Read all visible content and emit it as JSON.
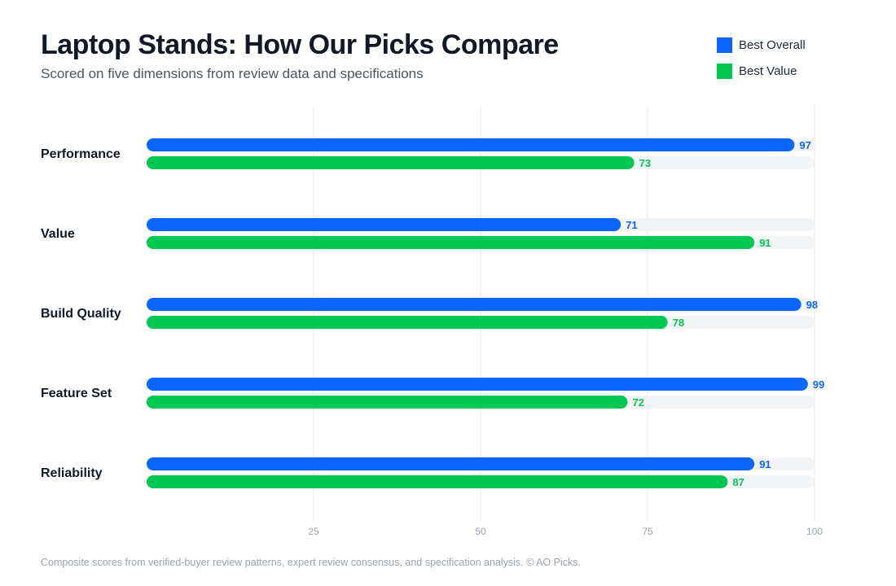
{
  "header": {
    "title": "Laptop Stands: How Our Picks Compare",
    "subtitle": "Scored on five dimensions from review data and specifications"
  },
  "legend": {
    "items": [
      {
        "label": "Best Overall",
        "color": "#0a66ff"
      },
      {
        "label": "Best Value",
        "color": "#00c853"
      }
    ]
  },
  "footer": {
    "note": "Composite scores from verified-buyer review patterns, expert review consensus, and specification analysis. © AO Picks."
  },
  "chart_data": {
    "type": "bar",
    "orientation": "horizontal",
    "title": "Laptop Stands: How Our Picks Compare",
    "subtitle": "Scored on five dimensions from review data and specifications",
    "categories": [
      "Performance",
      "Value",
      "Build Quality",
      "Feature Set",
      "Reliability"
    ],
    "series": [
      {
        "name": "Best Overall",
        "color": "#0a66ff",
        "values": [
          97,
          71,
          98,
          99,
          91
        ]
      },
      {
        "name": "Best Value",
        "color": "#00c853",
        "values": [
          73,
          91,
          78,
          72,
          87
        ]
      }
    ],
    "xlim": [
      0,
      100
    ],
    "xticks": [
      25,
      50,
      75,
      100
    ],
    "grid": true,
    "legend_position": "top-right",
    "track_color": "#f3f4f6",
    "grid_color": "#e5e7eb"
  }
}
